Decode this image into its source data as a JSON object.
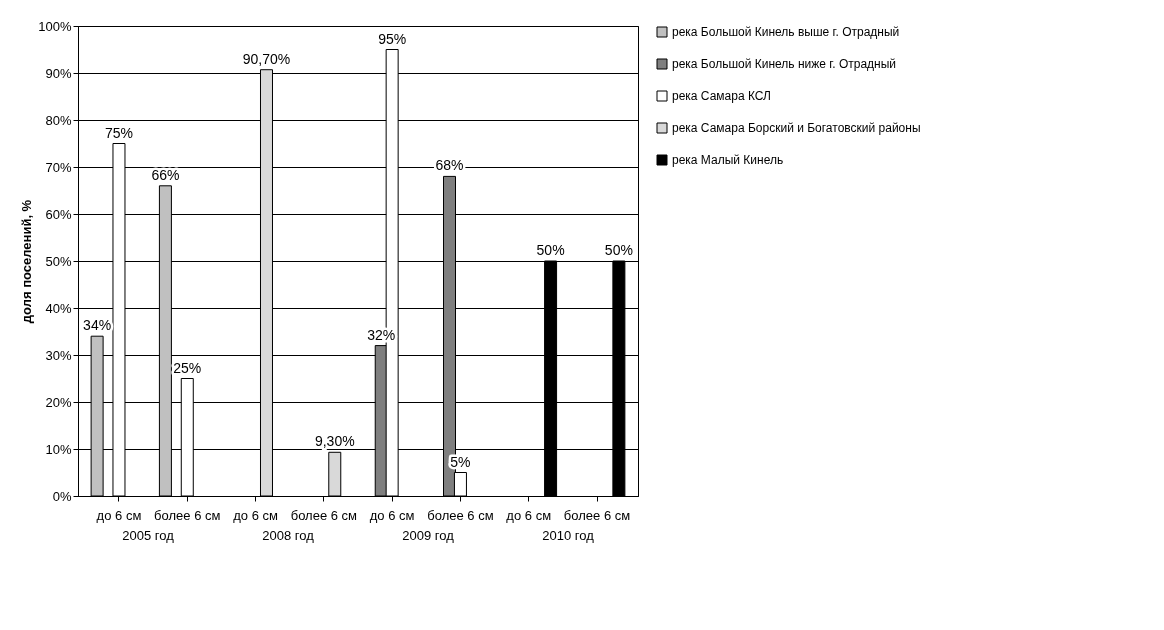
{
  "chart_data": {
    "type": "bar",
    "ylabel": "доля поселений, %",
    "categories": [
      "до 6 см",
      "более 6 см",
      "до 6 см",
      "более 6 см",
      "до 6 см",
      "более 6 см",
      "до 6 см",
      "более 6 см"
    ],
    "annotations": [
      "2005 год",
      "2008 год",
      "2009 год",
      "2010 год"
    ],
    "series": [
      {
        "name": "река Большой Кинель выше г. Отрадный",
        "color": "#c0c0c0",
        "values": [
          34,
          66,
          null,
          null,
          null,
          null,
          null,
          null
        ],
        "value_labels": [
          "34%",
          "66%",
          null,
          null,
          null,
          null,
          null,
          null
        ]
      },
      {
        "name": "река Большой Кинель ниже г. Отрадный",
        "color": "#7f7f7f",
        "values": [
          null,
          null,
          null,
          null,
          32,
          68,
          null,
          null
        ],
        "value_labels": [
          null,
          null,
          null,
          null,
          "32%",
          "68%",
          null,
          null
        ]
      },
      {
        "name": "река Самара КСЛ",
        "color": "#ffffff",
        "values": [
          75,
          25,
          null,
          null,
          95,
          5,
          null,
          null
        ],
        "value_labels": [
          "75%",
          "25%",
          null,
          null,
          "95%",
          "5%",
          null,
          null
        ]
      },
      {
        "name": "река Самара  Борский и Богатовский районы",
        "color": "#d9d9d9",
        "values": [
          null,
          null,
          90.7,
          9.3,
          null,
          null,
          null,
          null
        ],
        "value_labels": [
          null,
          null,
          "90,70%",
          "9,30%",
          null,
          null,
          null,
          null
        ]
      },
      {
        "name": "река Малый Кинель",
        "color": "#000000",
        "values": [
          null,
          null,
          null,
          null,
          null,
          null,
          50,
          50
        ],
        "value_labels": [
          null,
          null,
          null,
          null,
          null,
          null,
          "50%",
          "50%"
        ]
      }
    ],
    "ylim": [
      0,
      100
    ],
    "yticks": [
      {
        "value": 0,
        "label": "0%"
      },
      {
        "value": 10,
        "label": "10%"
      },
      {
        "value": 20,
        "label": "20%"
      },
      {
        "value": 30,
        "label": "30%"
      },
      {
        "value": 40,
        "label": "40%"
      },
      {
        "value": 50,
        "label": "50%"
      },
      {
        "value": 60,
        "label": "60%"
      },
      {
        "value": 70,
        "label": "70%"
      },
      {
        "value": 80,
        "label": "80%"
      },
      {
        "value": 90,
        "label": "90%"
      },
      {
        "value": 100,
        "label": "100%"
      }
    ],
    "grid": "y",
    "legend": "right"
  }
}
